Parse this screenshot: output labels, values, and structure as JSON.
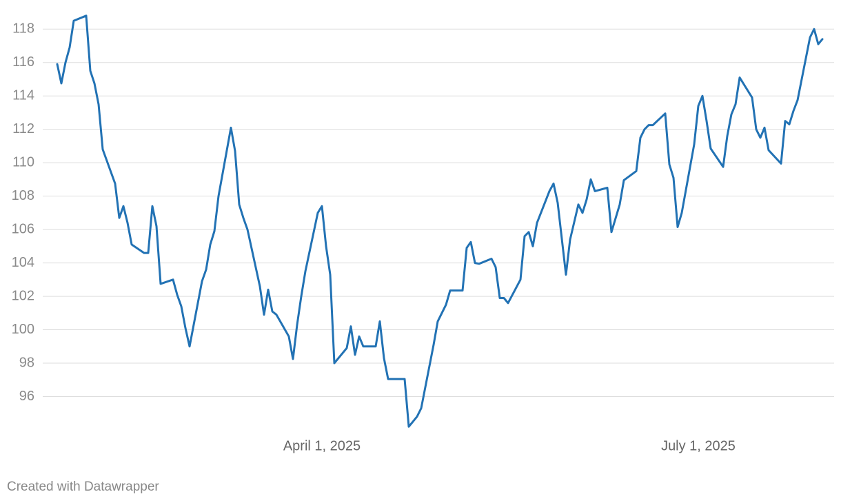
{
  "chart_data": {
    "type": "line",
    "x": [
      "2025-01-27",
      "2025-01-28",
      "2025-01-29",
      "2025-01-30",
      "2025-01-31",
      "2025-02-03",
      "2025-02-04",
      "2025-02-05",
      "2025-02-06",
      "2025-02-07",
      "2025-02-10",
      "2025-02-11",
      "2025-02-12",
      "2025-02-13",
      "2025-02-14",
      "2025-02-17",
      "2025-02-18",
      "2025-02-19",
      "2025-02-20",
      "2025-02-21",
      "2025-02-24",
      "2025-02-25",
      "2025-02-26",
      "2025-02-27",
      "2025-02-28",
      "2025-03-03",
      "2025-03-04",
      "2025-03-05",
      "2025-03-06",
      "2025-03-07",
      "2025-03-10",
      "2025-03-11",
      "2025-03-12",
      "2025-03-13",
      "2025-03-14",
      "2025-03-17",
      "2025-03-18",
      "2025-03-19",
      "2025-03-20",
      "2025-03-21",
      "2025-03-24",
      "2025-03-25",
      "2025-03-26",
      "2025-03-27",
      "2025-03-28",
      "2025-03-31",
      "2025-04-01",
      "2025-04-02",
      "2025-04-03",
      "2025-04-04",
      "2025-04-07",
      "2025-04-08",
      "2025-04-09",
      "2025-04-10",
      "2025-04-11",
      "2025-04-14",
      "2025-04-15",
      "2025-04-16",
      "2025-04-17",
      "2025-04-21",
      "2025-04-22",
      "2025-04-23",
      "2025-04-24",
      "2025-04-25",
      "2025-04-28",
      "2025-04-29",
      "2025-05-01",
      "2025-05-02",
      "2025-05-05",
      "2025-05-06",
      "2025-05-07",
      "2025-05-08",
      "2025-05-09",
      "2025-05-12",
      "2025-05-13",
      "2025-05-14",
      "2025-05-15",
      "2025-05-16",
      "2025-05-19",
      "2025-05-20",
      "2025-05-21",
      "2025-05-22",
      "2025-05-23",
      "2025-05-26",
      "2025-05-27",
      "2025-05-28",
      "2025-05-30",
      "2025-05-31",
      "2025-06-02",
      "2025-06-03",
      "2025-06-04",
      "2025-06-05",
      "2025-06-06",
      "2025-06-09",
      "2025-06-10",
      "2025-06-12",
      "2025-06-13",
      "2025-06-16",
      "2025-06-17",
      "2025-06-18",
      "2025-06-19",
      "2025-06-20",
      "2025-06-23",
      "2025-06-24",
      "2025-06-25",
      "2025-06-26",
      "2025-06-27",
      "2025-06-30",
      "2025-07-01",
      "2025-07-02",
      "2025-07-03",
      "2025-07-04",
      "2025-07-07",
      "2025-07-08",
      "2025-07-09",
      "2025-07-10",
      "2025-07-11",
      "2025-07-14",
      "2025-07-15",
      "2025-07-16",
      "2025-07-17",
      "2025-07-18",
      "2025-07-21",
      "2025-07-22",
      "2025-07-23",
      "2025-07-24",
      "2025-07-25",
      "2025-07-28",
      "2025-07-29",
      "2025-07-30",
      "2025-07-31"
    ],
    "series": [
      {
        "color": "#2272b4",
        "values": [
          115.9,
          114.75,
          116.0,
          116.9,
          118.5,
          118.8,
          115.5,
          114.75,
          113.5,
          110.8,
          108.75,
          106.7,
          107.4,
          106.4,
          105.1,
          104.6,
          104.6,
          107.4,
          106.2,
          102.75,
          103.0,
          102.1,
          101.4,
          100.1,
          99.0,
          102.9,
          103.6,
          105.1,
          105.9,
          108.0,
          112.1,
          110.7,
          107.5,
          106.7,
          106.0,
          102.6,
          100.9,
          102.4,
          101.1,
          100.9,
          99.6,
          98.25,
          100.3,
          102.0,
          103.5,
          107.0,
          107.4,
          105.0,
          103.3,
          98.0,
          98.9,
          100.2,
          98.5,
          99.6,
          99.0,
          99.0,
          100.5,
          98.3,
          97.05,
          97.05,
          94.2,
          94.5,
          94.8,
          95.3,
          99.1,
          100.5,
          101.5,
          102.35,
          102.35,
          104.9,
          105.25,
          104.0,
          103.95,
          104.25,
          103.75,
          101.9,
          101.9,
          101.6,
          103.0,
          105.6,
          105.85,
          105.0,
          106.4,
          108.3,
          108.75,
          107.6,
          103.3,
          105.4,
          107.5,
          107.0,
          107.8,
          109.0,
          108.3,
          108.5,
          105.85,
          107.5,
          108.95,
          109.5,
          111.5,
          112.0,
          112.25,
          112.25,
          112.95,
          109.9,
          109.1,
          106.15,
          107.0,
          111.1,
          113.4,
          114.0,
          112.5,
          110.85,
          109.75,
          111.6,
          112.9,
          113.5,
          115.1,
          113.9,
          112.0,
          111.5,
          112.1,
          110.75,
          109.95,
          112.5,
          112.3,
          113.1,
          113.75,
          117.5,
          118.0,
          117.1,
          117.4
        ]
      }
    ],
    "xlim": [
      "2025-01-27",
      "2025-07-31"
    ],
    "xticks": [
      {
        "value": "2025-04-01",
        "label": "April 1, 2025"
      },
      {
        "value": "2025-07-01",
        "label": "July 1, 2025"
      }
    ],
    "ylim": [
      94,
      119
    ],
    "yticks": [
      96,
      98,
      100,
      102,
      104,
      106,
      108,
      110,
      112,
      114,
      116,
      118
    ],
    "grid": true,
    "credit": "Created with Datawrapper"
  }
}
